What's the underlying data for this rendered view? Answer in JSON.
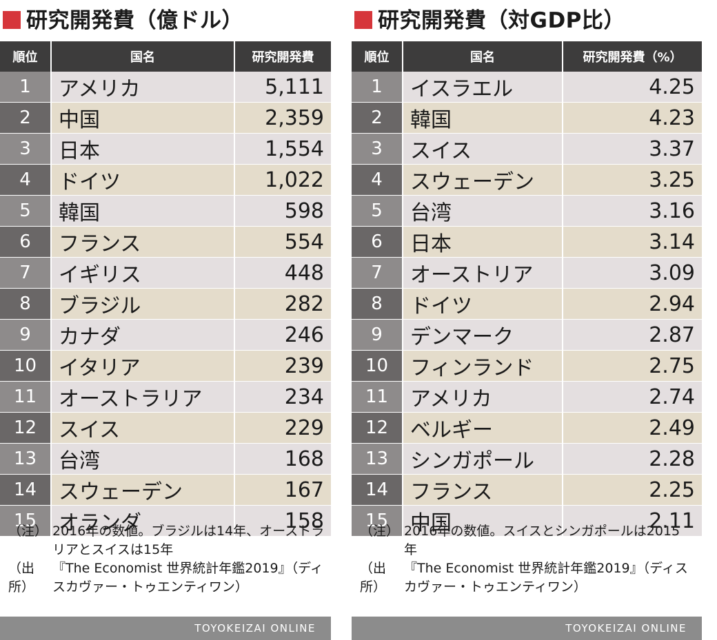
{
  "chart_data": [
    {
      "type": "table",
      "title": "研究開発費（億ドル）",
      "columns": [
        "順位",
        "国名",
        "研究開発費"
      ],
      "rows": [
        {
          "rank": "1",
          "country": "アメリカ",
          "value": "5,111"
        },
        {
          "rank": "2",
          "country": "中国",
          "value": "2,359"
        },
        {
          "rank": "3",
          "country": "日本",
          "value": "1,554"
        },
        {
          "rank": "4",
          "country": "ドイツ",
          "value": "1,022"
        },
        {
          "rank": "5",
          "country": "韓国",
          "value": "598"
        },
        {
          "rank": "6",
          "country": "フランス",
          "value": "554"
        },
        {
          "rank": "7",
          "country": "イギリス",
          "value": "448"
        },
        {
          "rank": "8",
          "country": "ブラジル",
          "value": "282"
        },
        {
          "rank": "9",
          "country": "カナダ",
          "value": "246"
        },
        {
          "rank": "10",
          "country": "イタリア",
          "value": "239"
        },
        {
          "rank": "11",
          "country": "オーストラリア",
          "value": "234"
        },
        {
          "rank": "12",
          "country": "スイス",
          "value": "229"
        },
        {
          "rank": "13",
          "country": "台湾",
          "value": "168"
        },
        {
          "rank": "14",
          "country": "スウェーデン",
          "value": "167"
        },
        {
          "rank": "15",
          "country": "オランダ",
          "value": "158"
        }
      ],
      "note_label": "（注）",
      "note": "2016年の数値。ブラジルは14年、オーストラリアとスイスは15年",
      "source_label": "（出所）",
      "source": "『The Economist 世界統計年鑑2019』（ディスカヴァー・トゥエンティワン）",
      "footer": "TOYOKEIZAI ONLINE",
      "colors": {
        "accent": "#d6363b",
        "header": "#3d3c3c",
        "rank_dark": "#6a6767",
        "rank_light": "#8e8b8b",
        "row_pink": "#e4dfe0",
        "row_beige": "#e4dccb",
        "footer": "#8c8c8c"
      }
    },
    {
      "type": "table",
      "title": "研究開発費（対GDP比）",
      "columns": [
        "順位",
        "国名",
        "研究開発費（%）"
      ],
      "rows": [
        {
          "rank": "1",
          "country": "イスラエル",
          "value": "4.25"
        },
        {
          "rank": "2",
          "country": "韓国",
          "value": "4.23"
        },
        {
          "rank": "3",
          "country": "スイス",
          "value": "3.37"
        },
        {
          "rank": "4",
          "country": "スウェーデン",
          "value": "3.25"
        },
        {
          "rank": "5",
          "country": "台湾",
          "value": "3.16"
        },
        {
          "rank": "6",
          "country": "日本",
          "value": "3.14"
        },
        {
          "rank": "7",
          "country": "オーストリア",
          "value": "3.09"
        },
        {
          "rank": "8",
          "country": "ドイツ",
          "value": "2.94"
        },
        {
          "rank": "9",
          "country": "デンマーク",
          "value": "2.87"
        },
        {
          "rank": "10",
          "country": "フィンランド",
          "value": "2.75"
        },
        {
          "rank": "11",
          "country": "アメリカ",
          "value": "2.74"
        },
        {
          "rank": "12",
          "country": "ベルギー",
          "value": "2.49"
        },
        {
          "rank": "13",
          "country": "シンガポール",
          "value": "2.28"
        },
        {
          "rank": "14",
          "country": "フランス",
          "value": "2.25"
        },
        {
          "rank": "15",
          "country": "中国",
          "value": "2.11"
        }
      ],
      "note_label": "（注）",
      "note": "2016年の数値。スイスとシンガポールは2015年",
      "source_label": "（出所）",
      "source": "『The Economist 世界統計年鑑2019』（ディスカヴァー・トゥエンティワン）",
      "footer": "TOYOKEIZAI ONLINE",
      "colors": {
        "accent": "#d6363b",
        "header": "#3d3c3c",
        "rank_dark": "#6a6767",
        "rank_light": "#8e8b8b",
        "row_pink": "#e4dfe0",
        "row_beige": "#e4dccb",
        "footer": "#8c8c8c"
      }
    }
  ]
}
